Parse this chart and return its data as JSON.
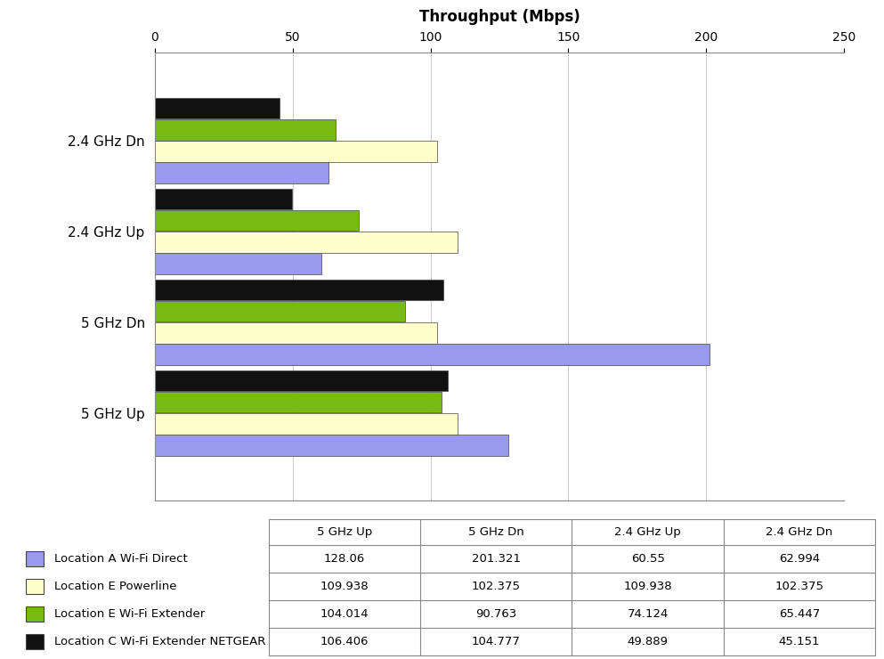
{
  "title": "Throughput (Mbps)",
  "categories": [
    "2.4 GHz Dn",
    "2.4 GHz Up",
    "5 GHz Dn",
    "5 GHz Up"
  ],
  "series": [
    {
      "label": "Location A Wi-Fi Direct",
      "color": "#9999EE",
      "values": [
        62.994,
        60.55,
        201.321,
        128.06
      ]
    },
    {
      "label": "Location E Powerline",
      "color": "#FFFFCC",
      "values": [
        102.375,
        109.938,
        102.375,
        109.938
      ]
    },
    {
      "label": "Location E Wi-Fi Extender",
      "color": "#77BB11",
      "values": [
        65.447,
        74.124,
        90.763,
        104.014
      ]
    },
    {
      "label": "Location C Wi-Fi Extender NETGEAR",
      "color": "#111111",
      "values": [
        45.151,
        49.889,
        104.777,
        106.406
      ]
    }
  ],
  "xlim": [
    0,
    250
  ],
  "xticks": [
    0,
    50,
    100,
    150,
    200,
    250
  ],
  "bar_edge_color": "#444444",
  "bar_edge_width": 0.5,
  "table_columns": [
    "5 GHz Up",
    "5 GHz Dn",
    "2.4 GHz Up",
    "2.4 GHz Dn"
  ],
  "table_data": [
    [
      "128.06",
      "201.321",
      "60.55",
      "62.994"
    ],
    [
      "109.938",
      "102.375",
      "109.938",
      "102.375"
    ],
    [
      "104.014",
      "90.763",
      "74.124",
      "65.447"
    ],
    [
      "106.406",
      "104.777",
      "49.889",
      "45.151"
    ]
  ],
  "background_color": "#FFFFFF",
  "grid_color": "#CCCCCC",
  "plot_bg_color": "#FFFFFF"
}
